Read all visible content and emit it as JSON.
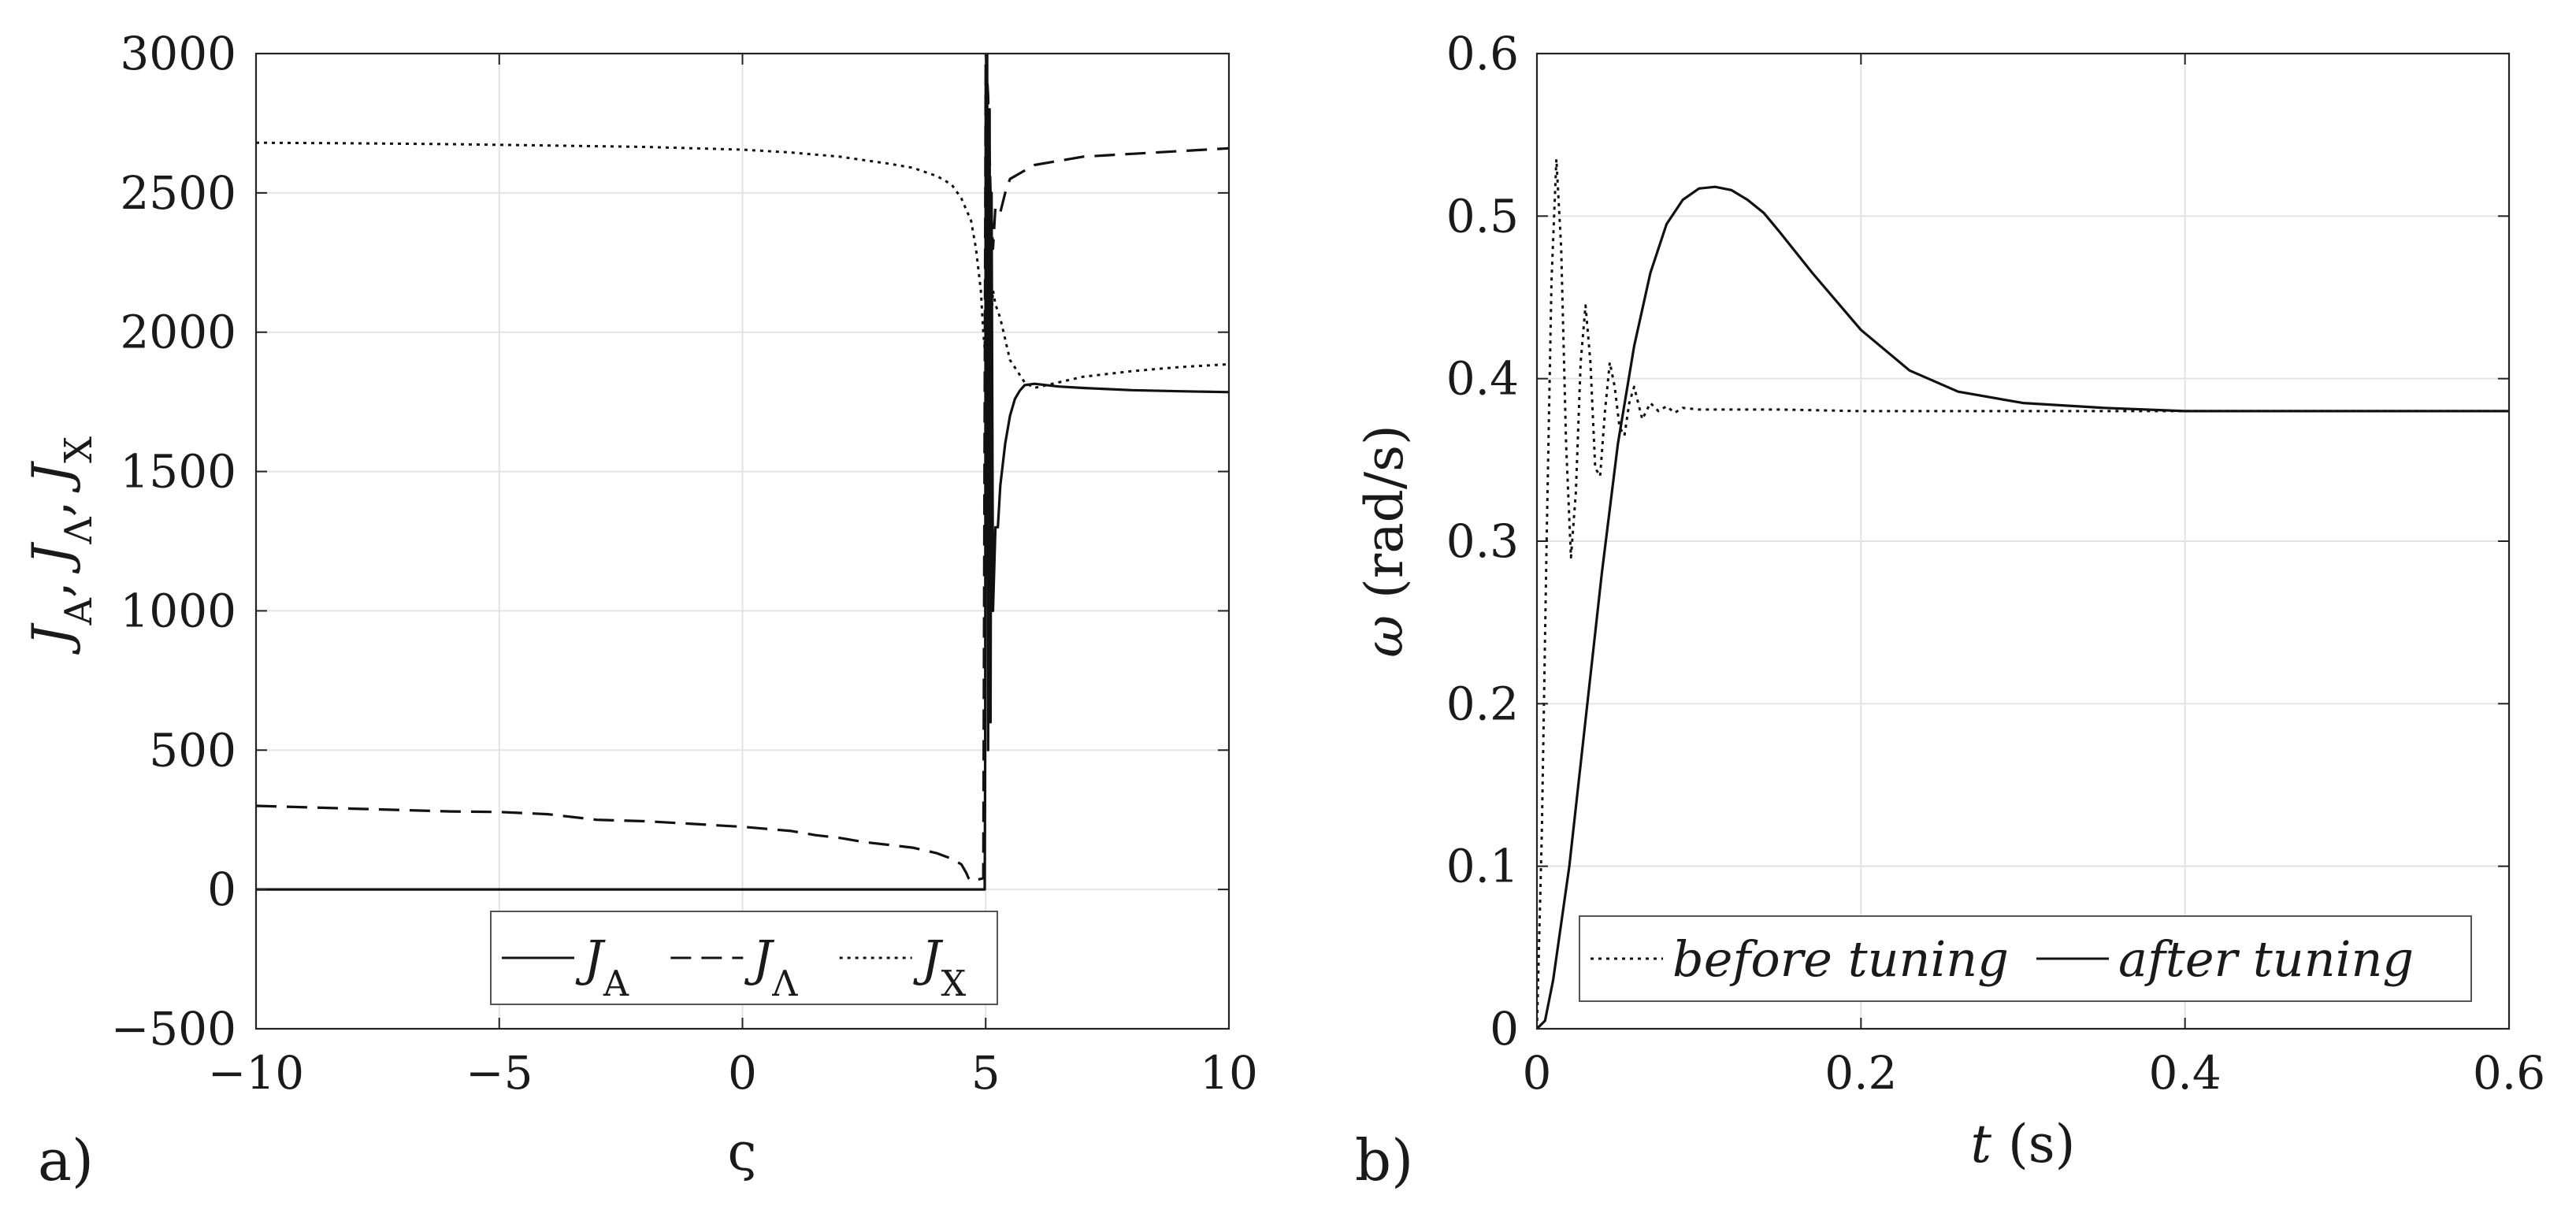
{
  "chart_data": [
    {
      "type": "line",
      "panel_label": "a)",
      "xlabel": "ς",
      "ylabel": "J_A, J_Λ, J_X",
      "ylabel_parts": [
        {
          "t": "J",
          "italic": true
        },
        {
          "t": "A",
          "sub": true
        },
        {
          "t": ", "
        },
        {
          "t": "J",
          "italic": true
        },
        {
          "t": "Λ",
          "sub": true
        },
        {
          "t": ", "
        },
        {
          "t": "J",
          "italic": true
        },
        {
          "t": "X",
          "sub": true
        }
      ],
      "xlim": [
        -10,
        10
      ],
      "ylim": [
        -500,
        3000
      ],
      "xticks": [
        -10,
        -5,
        0,
        5,
        10
      ],
      "xtick_labels": [
        "−10",
        "−5",
        "0",
        "5",
        "10"
      ],
      "yticks": [
        -500,
        0,
        500,
        1000,
        1500,
        2000,
        2500,
        3000
      ],
      "ytick_labels": [
        "−500",
        "0",
        "500",
        "1000",
        "1500",
        "2000",
        "2500",
        "3000"
      ],
      "grid": true,
      "legend_position": "bottom-center",
      "series": [
        {
          "name": "J_A",
          "main": "J",
          "sub": "A",
          "style": "solid",
          "x": [
            -10,
            4.98,
            4.99,
            5.0,
            5.01,
            5.03,
            5.05,
            5.08,
            5.1,
            5.12,
            5.15,
            5.2,
            5.25,
            5.3,
            5.4,
            5.5,
            5.6,
            5.7,
            5.8,
            6.0,
            6.5,
            7.0,
            8.0,
            9.0,
            10.0
          ],
          "y": [
            0,
            0,
            500,
            2900,
            1300,
            3000,
            500,
            2800,
            600,
            2500,
            1000,
            1300,
            1300,
            1450,
            1600,
            1700,
            1760,
            1790,
            1810,
            1815,
            1805,
            1800,
            1792,
            1788,
            1785
          ]
        },
        {
          "name": "J_Λ",
          "main": "J",
          "sub": "Λ",
          "style": "dashed",
          "x": [
            -10,
            -8,
            -6,
            -5,
            -4,
            -3,
            -2,
            -1,
            0,
            1,
            1.5,
            2,
            2.5,
            3,
            3.5,
            4,
            4.3,
            4.5,
            4.6,
            4.65,
            4.7,
            4.95,
            5.0,
            5.05,
            5.1,
            5.15,
            5.2,
            5.3,
            5.4,
            5.5,
            6,
            7,
            8,
            9,
            10
          ],
          "y": [
            300,
            290,
            280,
            278,
            270,
            250,
            245,
            235,
            225,
            210,
            195,
            185,
            170,
            160,
            150,
            130,
            110,
            90,
            60,
            40,
            30,
            40,
            3000,
            2850,
            2500,
            2300,
            2450,
            2430,
            2500,
            2550,
            2600,
            2630,
            2640,
            2650,
            2660
          ]
        },
        {
          "name": "J_X",
          "main": "J",
          "sub": "X",
          "style": "dotted",
          "x": [
            -10,
            -8,
            -6,
            -4,
            -2,
            0,
            1,
            2,
            3,
            3.5,
            4,
            4.3,
            4.5,
            4.7,
            4.8,
            4.9,
            4.95,
            5.0,
            5.05,
            5.1,
            5.15,
            5.2,
            5.3,
            5.5,
            5.8,
            6,
            7,
            8,
            9,
            10
          ],
          "y": [
            2680,
            2678,
            2675,
            2670,
            2665,
            2655,
            2645,
            2630,
            2605,
            2590,
            2560,
            2530,
            2480,
            2400,
            2300,
            2150,
            2000,
            1900,
            2200,
            2000,
            2150,
            2100,
            2050,
            1900,
            1820,
            1800,
            1840,
            1860,
            1875,
            1885
          ]
        }
      ]
    },
    {
      "type": "line",
      "panel_label": "b)",
      "xlabel": "t (s)",
      "xlabel_parts": [
        {
          "t": "t",
          "italic": true
        },
        {
          "t": " (s)"
        }
      ],
      "ylabel": "ω (rad/s)",
      "ylabel_parts": [
        {
          "t": "ω",
          "italic": true
        },
        {
          "t": " (rad/s)"
        }
      ],
      "xlim": [
        0,
        0.6
      ],
      "ylim": [
        0,
        0.6
      ],
      "xticks": [
        0,
        0.2,
        0.4,
        0.6
      ],
      "xtick_labels": [
        "0",
        "0.2",
        "0.4",
        "0.6"
      ],
      "yticks": [
        0,
        0.1,
        0.2,
        0.3,
        0.4,
        0.5,
        0.6
      ],
      "ytick_labels": [
        "0",
        "0.1",
        "0.2",
        "0.3",
        "0.4",
        "0.5",
        "0.6"
      ],
      "grid": true,
      "legend_position": "bottom-center",
      "series": [
        {
          "name": "before tuning",
          "style": "dotted",
          "x": [
            0,
            0.003,
            0.006,
            0.009,
            0.012,
            0.015,
            0.018,
            0.021,
            0.024,
            0.027,
            0.03,
            0.033,
            0.036,
            0.039,
            0.042,
            0.045,
            0.048,
            0.051,
            0.054,
            0.057,
            0.06,
            0.065,
            0.07,
            0.075,
            0.08,
            0.085,
            0.09,
            0.1,
            0.12,
            0.15,
            0.2,
            0.3,
            0.4,
            0.5,
            0.6
          ],
          "y": [
            0,
            0.12,
            0.3,
            0.46,
            0.535,
            0.48,
            0.36,
            0.29,
            0.33,
            0.41,
            0.445,
            0.41,
            0.345,
            0.34,
            0.38,
            0.41,
            0.395,
            0.37,
            0.365,
            0.385,
            0.395,
            0.375,
            0.385,
            0.38,
            0.383,
            0.379,
            0.382,
            0.381,
            0.381,
            0.381,
            0.38,
            0.38,
            0.38,
            0.38,
            0.38
          ]
        },
        {
          "name": "after tuning",
          "style": "solid",
          "x": [
            0,
            0.005,
            0.01,
            0.02,
            0.03,
            0.04,
            0.05,
            0.06,
            0.07,
            0.08,
            0.09,
            0.1,
            0.11,
            0.12,
            0.13,
            0.14,
            0.15,
            0.17,
            0.2,
            0.23,
            0.26,
            0.3,
            0.35,
            0.4,
            0.45,
            0.5,
            0.6
          ],
          "y": [
            0,
            0.005,
            0.03,
            0.1,
            0.19,
            0.28,
            0.36,
            0.42,
            0.465,
            0.495,
            0.51,
            0.517,
            0.518,
            0.516,
            0.51,
            0.502,
            0.49,
            0.465,
            0.43,
            0.405,
            0.392,
            0.385,
            0.382,
            0.38,
            0.38,
            0.38,
            0.38
          ]
        }
      ]
    }
  ]
}
